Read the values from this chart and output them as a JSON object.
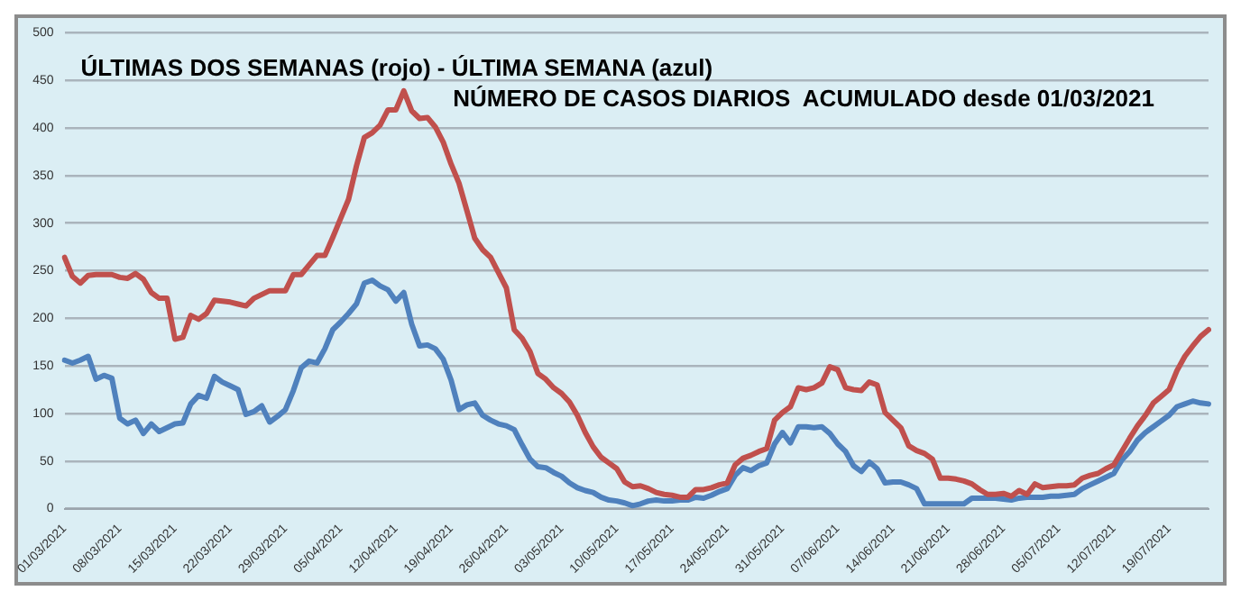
{
  "chart_data": {
    "type": "line",
    "title": "ÚLTIMAS DOS SEMANAS (rojo) - ÚLTIMA SEMANA (azul)",
    "subtitle": "NÚMERO DE CASOS DIARIOS  ACUMULADO desde 01/03/2021",
    "categories": [
      "01/03/2021",
      null,
      null,
      null,
      null,
      null,
      null,
      "08/03/2021",
      null,
      null,
      null,
      null,
      null,
      null,
      "15/03/2021",
      null,
      null,
      null,
      null,
      null,
      null,
      "22/03/2021",
      null,
      null,
      null,
      null,
      null,
      null,
      "29/03/2021",
      null,
      null,
      null,
      null,
      null,
      null,
      "05/04/2021",
      null,
      null,
      null,
      null,
      null,
      null,
      "12/04/2021",
      null,
      null,
      null,
      null,
      null,
      null,
      "19/04/2021",
      null,
      null,
      null,
      null,
      null,
      null,
      "26/04/2021",
      null,
      null,
      null,
      null,
      null,
      null,
      "03/05/2021",
      null,
      null,
      null,
      null,
      null,
      null,
      "10/05/2021",
      null,
      null,
      null,
      null,
      null,
      null,
      "17/05/2021",
      null,
      null,
      null,
      null,
      null,
      null,
      "24/05/2021",
      null,
      null,
      null,
      null,
      null,
      null,
      "31/05/2021",
      null,
      null,
      null,
      null,
      null,
      null,
      "07/06/2021",
      null,
      null,
      null,
      null,
      null,
      null,
      "14/06/2021",
      null,
      null,
      null,
      null,
      null,
      null,
      "21/06/2021",
      null,
      null,
      null,
      null,
      null,
      null,
      "28/06/2021",
      null,
      null,
      null,
      null,
      null,
      null,
      "05/07/2021",
      null,
      null,
      null,
      null,
      null,
      null,
      "12/07/2021",
      null,
      null,
      null,
      null,
      null,
      null,
      "19/07/2021",
      null,
      null,
      null,
      null,
      null
    ],
    "series": [
      {
        "color": "#c0504d",
        "values": [
          264,
          244,
          237,
          245,
          246,
          246,
          246,
          243,
          242,
          247,
          241,
          227,
          221,
          221,
          178,
          180,
          203,
          199,
          205,
          219,
          218,
          217,
          215,
          213,
          221,
          225,
          229,
          229,
          229,
          246,
          246,
          256,
          266,
          266,
          285,
          305,
          325,
          360,
          390,
          395,
          403,
          419,
          419,
          439,
          418,
          410,
          411,
          401,
          385,
          362,
          342,
          313,
          284,
          272,
          264,
          248,
          232,
          188,
          179,
          165,
          142,
          136,
          127,
          121,
          112,
          98,
          80,
          65,
          54,
          48,
          42,
          28,
          23,
          24,
          21,
          17,
          15,
          14,
          12,
          12,
          20,
          20,
          22,
          25,
          27,
          46,
          53,
          56,
          60,
          63,
          93,
          101,
          107,
          127,
          125,
          127,
          132,
          149,
          146,
          127,
          125,
          124,
          133,
          130,
          101,
          93,
          85,
          66,
          61,
          58,
          52,
          32,
          32,
          31,
          29,
          26,
          20,
          15,
          15,
          16,
          13,
          19,
          15,
          26,
          22,
          23,
          24,
          24,
          25,
          32,
          35,
          37,
          42,
          46,
          60,
          74,
          87,
          98,
          111,
          118,
          125,
          145,
          160,
          171,
          181,
          188
        ]
      },
      {
        "color": "#4f81bd",
        "values": [
          156,
          153,
          156,
          160,
          136,
          140,
          137,
          95,
          89,
          93,
          79,
          89,
          81,
          85,
          89,
          90,
          110,
          119,
          116,
          139,
          133,
          129,
          125,
          99,
          102,
          108,
          91,
          97,
          104,
          124,
          148,
          155,
          153,
          168,
          188,
          196,
          205,
          215,
          237,
          240,
          234,
          230,
          218,
          227,
          194,
          171,
          172,
          168,
          157,
          135,
          104,
          109,
          111,
          98,
          93,
          89,
          87,
          83,
          67,
          52,
          44,
          43,
          38,
          34,
          27,
          22,
          19,
          17,
          12,
          9,
          8,
          6,
          3,
          5,
          8,
          9,
          8,
          8,
          9,
          9,
          12,
          11,
          14,
          18,
          21,
          35,
          43,
          40,
          45,
          48,
          68,
          80,
          69,
          86,
          86,
          85,
          86,
          79,
          68,
          60,
          45,
          39,
          49,
          42,
          27,
          28,
          28,
          25,
          21,
          5,
          5,
          5,
          5,
          5,
          5,
          11,
          11,
          11,
          11,
          10,
          9,
          11,
          12,
          12,
          12,
          13,
          13,
          14,
          15,
          21,
          25,
          29,
          33,
          37,
          51,
          60,
          72,
          80,
          86,
          92,
          98,
          107,
          110,
          113,
          111,
          110
        ]
      }
    ],
    "ylim": [
      0,
      500
    ],
    "yticks": [
      0,
      50,
      100,
      150,
      200,
      250,
      300,
      350,
      400,
      450,
      500
    ],
    "grid": "y",
    "legend": false,
    "marker": "none",
    "line_style": "solid"
  }
}
